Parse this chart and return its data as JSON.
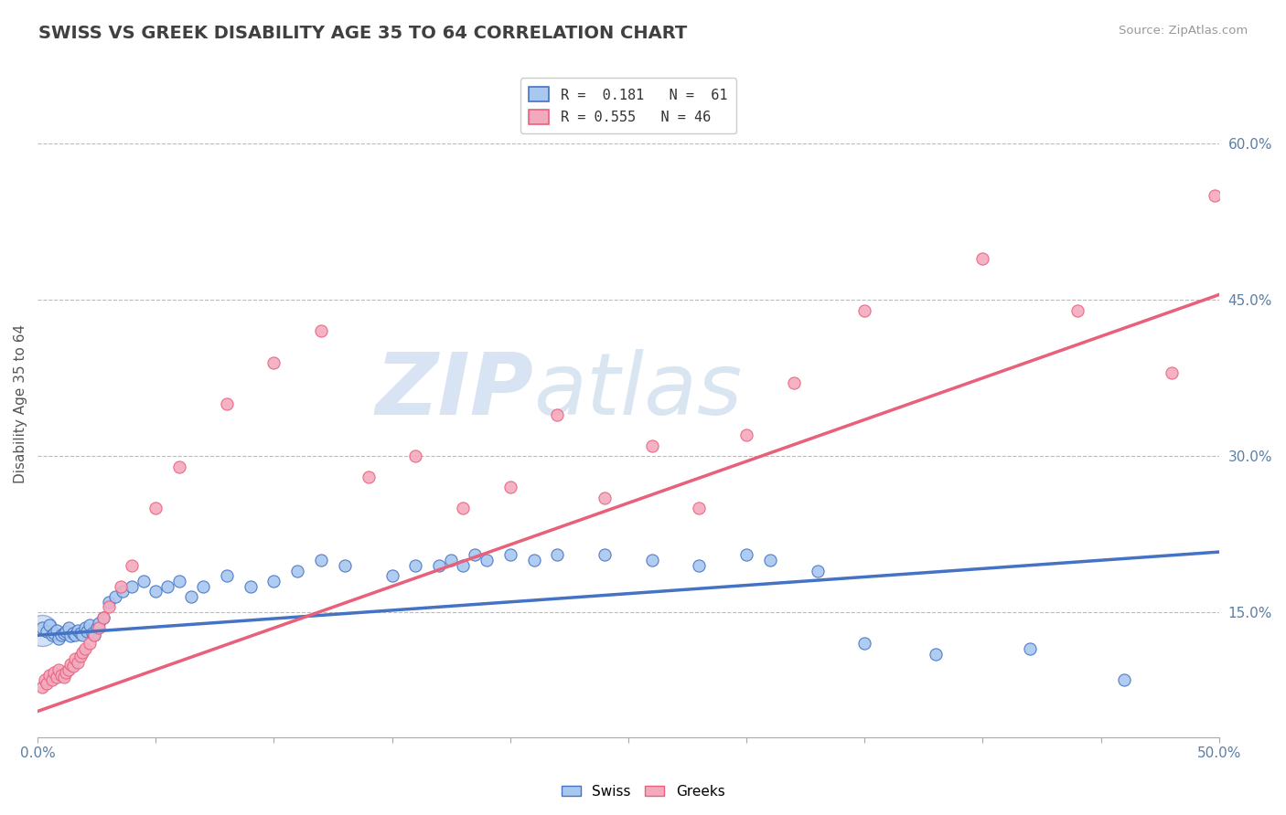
{
  "title": "SWISS VS GREEK DISABILITY AGE 35 TO 64 CORRELATION CHART",
  "source": "Source: ZipAtlas.com",
  "ylabel": "Disability Age 35 to 64",
  "xlim": [
    0.0,
    0.5
  ],
  "ylim": [
    0.03,
    0.67
  ],
  "yticks_right": [
    0.15,
    0.3,
    0.45,
    0.6
  ],
  "ytick_labels_right": [
    "15.0%",
    "30.0%",
    "45.0%",
    "60.0%"
  ],
  "legend_swiss": "R =  0.181   N =  61",
  "legend_greek": "R = 0.555   N = 46",
  "swiss_color": "#A8C8F0",
  "greek_color": "#F4AABE",
  "swiss_line_color": "#4472C4",
  "greek_line_color": "#E8607A",
  "watermark_zip": "ZIP",
  "watermark_atlas": "atlas",
  "swiss_trend_start_y": 0.128,
  "swiss_trend_end_y": 0.208,
  "greek_trend_start_y": 0.055,
  "greek_trend_end_y": 0.455,
  "swiss_x": [
    0.002,
    0.004,
    0.005,
    0.006,
    0.007,
    0.008,
    0.009,
    0.01,
    0.011,
    0.012,
    0.013,
    0.014,
    0.015,
    0.016,
    0.017,
    0.018,
    0.019,
    0.02,
    0.021,
    0.022,
    0.023,
    0.024,
    0.025,
    0.026,
    0.028,
    0.03,
    0.033,
    0.036,
    0.04,
    0.045,
    0.05,
    0.055,
    0.06,
    0.065,
    0.07,
    0.08,
    0.09,
    0.1,
    0.11,
    0.12,
    0.13,
    0.15,
    0.16,
    0.17,
    0.175,
    0.18,
    0.185,
    0.19,
    0.2,
    0.21,
    0.22,
    0.24,
    0.26,
    0.28,
    0.3,
    0.31,
    0.33,
    0.35,
    0.38,
    0.42,
    0.46
  ],
  "swiss_y": [
    0.135,
    0.132,
    0.138,
    0.128,
    0.13,
    0.133,
    0.125,
    0.128,
    0.13,
    0.132,
    0.135,
    0.127,
    0.13,
    0.128,
    0.133,
    0.13,
    0.128,
    0.135,
    0.132,
    0.138,
    0.13,
    0.128,
    0.135,
    0.14,
    0.145,
    0.16,
    0.165,
    0.17,
    0.175,
    0.18,
    0.17,
    0.175,
    0.18,
    0.165,
    0.175,
    0.185,
    0.175,
    0.18,
    0.19,
    0.2,
    0.195,
    0.185,
    0.195,
    0.195,
    0.2,
    0.195,
    0.205,
    0.2,
    0.205,
    0.2,
    0.205,
    0.205,
    0.2,
    0.195,
    0.205,
    0.2,
    0.19,
    0.12,
    0.11,
    0.115,
    0.085
  ],
  "greek_x": [
    0.002,
    0.003,
    0.004,
    0.005,
    0.006,
    0.007,
    0.008,
    0.009,
    0.01,
    0.011,
    0.012,
    0.013,
    0.014,
    0.015,
    0.016,
    0.017,
    0.018,
    0.019,
    0.02,
    0.022,
    0.024,
    0.026,
    0.028,
    0.03,
    0.035,
    0.04,
    0.05,
    0.06,
    0.08,
    0.1,
    0.12,
    0.14,
    0.16,
    0.18,
    0.2,
    0.22,
    0.24,
    0.26,
    0.28,
    0.3,
    0.32,
    0.35,
    0.4,
    0.44,
    0.48,
    0.498
  ],
  "greek_y": [
    0.078,
    0.085,
    0.082,
    0.09,
    0.085,
    0.092,
    0.088,
    0.095,
    0.09,
    0.088,
    0.092,
    0.095,
    0.1,
    0.098,
    0.105,
    0.102,
    0.108,
    0.112,
    0.115,
    0.12,
    0.128,
    0.135,
    0.145,
    0.155,
    0.175,
    0.195,
    0.25,
    0.29,
    0.35,
    0.39,
    0.42,
    0.28,
    0.3,
    0.25,
    0.27,
    0.34,
    0.26,
    0.31,
    0.25,
    0.32,
    0.37,
    0.44,
    0.49,
    0.44,
    0.38,
    0.55
  ]
}
